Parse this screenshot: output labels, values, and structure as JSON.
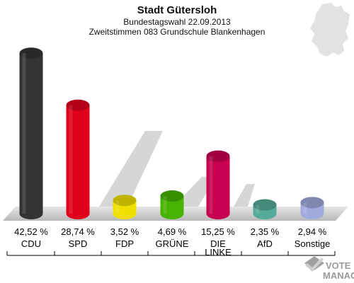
{
  "chart_data": {
    "type": "bar",
    "title": "Stadt Gütersloh",
    "subtitle": "Bundestagswahl 22.09.2013",
    "subtitle2": "Zweitstimmen 083 Grundschule Blankenhagen",
    "categories": [
      "CDU",
      "SPD",
      "FDP",
      "GRÜNE",
      "DIE LINKE",
      "AfD",
      "Sonstige"
    ],
    "category_lines": [
      [
        "CDU"
      ],
      [
        "SPD"
      ],
      [
        "FDP"
      ],
      [
        "GRÜNE"
      ],
      [
        "DIE",
        "LINKE"
      ],
      [
        "AfD"
      ],
      [
        "Sonstige"
      ]
    ],
    "values": [
      42.52,
      28.74,
      3.52,
      4.69,
      15.25,
      2.35,
      2.94
    ],
    "value_labels": [
      "42,52 %",
      "28,74 %",
      "3,52 %",
      "4,69 %",
      "15,25 %",
      "2,35 %",
      "2,94 %"
    ],
    "colors": [
      "#333333",
      "#e0001b",
      "#f0e000",
      "#46b400",
      "#c80050",
      "#55aa99",
      "#a0aadd"
    ],
    "ylim": [
      0,
      45
    ]
  },
  "logo": {
    "text_line1": "VOTE",
    "text_line2": "MANAGER",
    "icon": "ballot-check-icon"
  },
  "map": {
    "icon": "germany-map-icon"
  }
}
